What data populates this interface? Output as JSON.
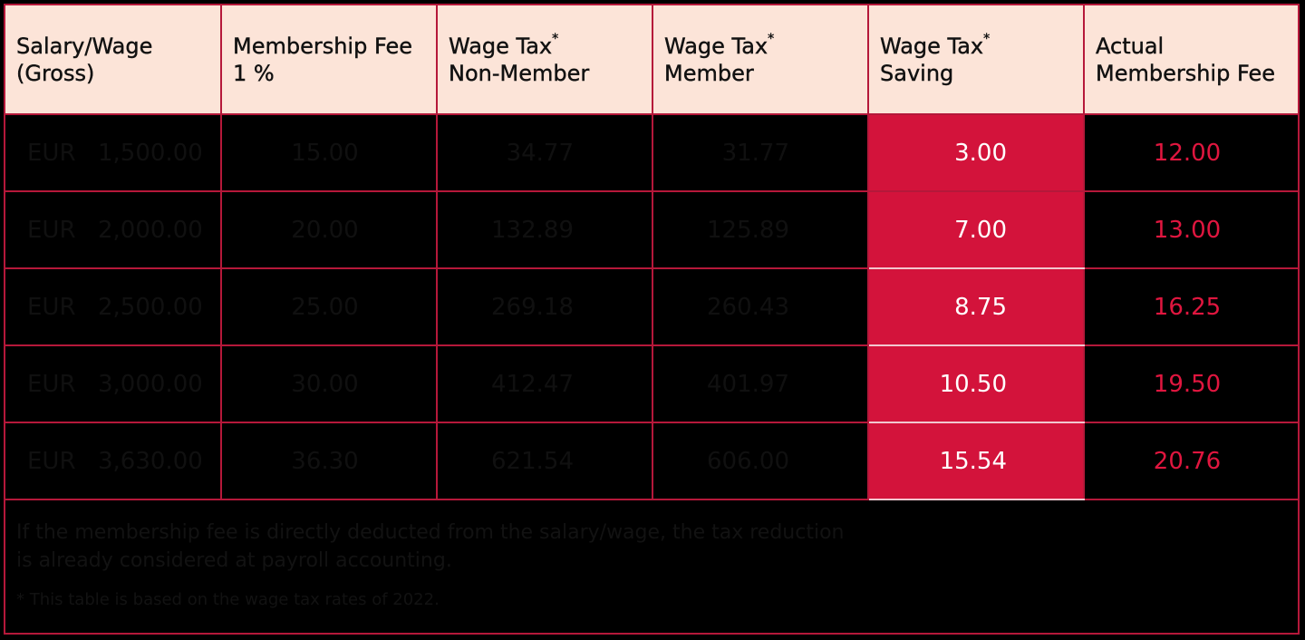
{
  "headers": [
    {
      "line1": "Salary/Wage",
      "line2": "(Gross)",
      "star": ""
    },
    {
      "line1": "Membership Fee",
      "line2": "1 %",
      "star": ""
    },
    {
      "line1": "Wage Tax",
      "line2": "Non-Member",
      "star": "*"
    },
    {
      "line1": "Wage Tax",
      "line2": "Member",
      "star": "*"
    },
    {
      "line1": "Wage Tax",
      "line2": "Saving",
      "star": "*"
    },
    {
      "line1": "Actual",
      "line2": "Membership Fee",
      "star": ""
    }
  ],
  "currency": "EUR",
  "rows": [
    {
      "salary": "1,500.00",
      "fee": "15.00",
      "tax_non_member": "34.77",
      "tax_member": "31.77",
      "saving": "3.00",
      "actual_fee": "12.00"
    },
    {
      "salary": "2,000.00",
      "fee": "20.00",
      "tax_non_member": "132.89",
      "tax_member": "125.89",
      "saving": "7.00",
      "actual_fee": "13.00"
    },
    {
      "salary": "2,500.00",
      "fee": "25.00",
      "tax_non_member": "269.18",
      "tax_member": "260.43",
      "saving": "8.75",
      "actual_fee": "16.25"
    },
    {
      "salary": "3,000.00",
      "fee": "30.00",
      "tax_non_member": "412.47",
      "tax_member": "401.97",
      "saving": "10.50",
      "actual_fee": "19.50"
    },
    {
      "salary": "3,630.00",
      "fee": "36.30",
      "tax_non_member": "621.54",
      "tax_member": "606.00",
      "saving": "15.54",
      "actual_fee": "20.76"
    }
  ],
  "footnote": {
    "line1": "If the membership fee is directly deducted from the salary/wage, the tax reduction",
    "line2": "is already considered at payroll accounting.",
    "note": "* This table is based on the wage tax rates of 2022."
  },
  "colors": {
    "header_bg": "#fce4d8",
    "accent": "#d3133b",
    "grid": "#b5183a",
    "background": "#000000"
  }
}
